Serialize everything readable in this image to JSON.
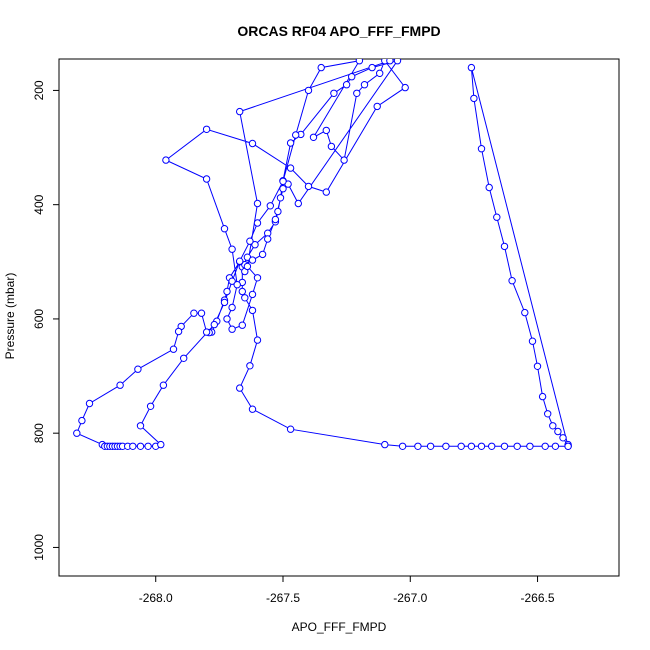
{
  "chart_data": {
    "type": "line",
    "title": "ORCAS RF04 APO_FFF_FMPD",
    "xlabel": "APO_FFF_FMPD",
    "ylabel": "Pressure (mbar)",
    "xlim": [
      -268.38,
      -266.18
    ],
    "ylim": [
      1050,
      145
    ],
    "x_ticks": [
      -268.0,
      -267.5,
      -267.0,
      -266.5
    ],
    "x_tick_labels": [
      "-268.0",
      "-267.5",
      "-267.0",
      "-266.5"
    ],
    "y_ticks": [
      200,
      400,
      600,
      800,
      1000
    ],
    "y_tick_labels": [
      "200",
      "400",
      "600",
      "800",
      "1000"
    ],
    "grid": false,
    "series": [
      {
        "color": "#0000ff",
        "marker": "open-circle",
        "points": [
          [
            -266.38,
            820
          ],
          [
            -266.38,
            823
          ],
          [
            -266.4,
            808
          ],
          [
            -266.42,
            797
          ],
          [
            -266.44,
            787
          ],
          [
            -266.46,
            766
          ],
          [
            -266.48,
            736
          ],
          [
            -266.5,
            683
          ],
          [
            -266.52,
            639
          ],
          [
            -266.55,
            589
          ],
          [
            -266.6,
            533
          ],
          [
            -266.63,
            473
          ],
          [
            -266.66,
            422
          ],
          [
            -266.69,
            370
          ],
          [
            -266.72,
            302
          ],
          [
            -266.75,
            214
          ],
          [
            -266.76,
            160
          ],
          [
            -266.38,
            823
          ],
          [
            -266.43,
            823
          ],
          [
            -266.47,
            823
          ],
          [
            -266.53,
            823
          ],
          [
            -266.58,
            823
          ],
          [
            -266.63,
            823
          ],
          [
            -266.68,
            823
          ],
          [
            -266.72,
            823
          ],
          [
            -266.76,
            823
          ],
          [
            -266.8,
            823
          ],
          [
            -266.86,
            823
          ],
          [
            -266.92,
            823
          ],
          [
            -266.97,
            823
          ],
          [
            -267.03,
            823
          ],
          [
            -267.1,
            820
          ],
          [
            -267.47,
            793
          ],
          [
            -267.62,
            758
          ],
          [
            -267.67,
            721
          ],
          [
            -267.63,
            682
          ],
          [
            -267.6,
            637
          ],
          [
            -267.62,
            585
          ],
          [
            -267.65,
            563
          ],
          [
            -267.66,
            552
          ],
          [
            -267.66,
            536
          ],
          [
            -267.66,
            509
          ],
          [
            -267.64,
            492
          ],
          [
            -267.61,
            470
          ],
          [
            -267.56,
            450
          ],
          [
            -267.53,
            430
          ],
          [
            -267.52,
            412
          ],
          [
            -267.51,
            388
          ],
          [
            -267.5,
            358
          ],
          [
            -267.47,
            292
          ],
          [
            -267.43,
            277
          ],
          [
            -267.3,
            205
          ],
          [
            -267.25,
            190
          ],
          [
            -267.23,
            176
          ],
          [
            -267.15,
            160
          ],
          [
            -267.05,
            148
          ],
          [
            -267.44,
            398
          ],
          [
            -267.48,
            364
          ],
          [
            -267.5,
            372
          ],
          [
            -267.53,
            426
          ],
          [
            -267.56,
            460
          ],
          [
            -267.58,
            487
          ],
          [
            -267.62,
            497
          ],
          [
            -267.65,
            505
          ],
          [
            -267.65,
            517
          ],
          [
            -267.67,
            500
          ],
          [
            -267.71,
            528
          ],
          [
            -267.72,
            552
          ],
          [
            -267.73,
            567
          ],
          [
            -267.76,
            604
          ],
          [
            -267.78,
            623
          ],
          [
            -267.79,
            624
          ],
          [
            -267.8,
            623
          ],
          [
            -267.82,
            590
          ],
          [
            -267.85,
            590
          ],
          [
            -267.9,
            613
          ],
          [
            -267.91,
            622
          ],
          [
            -267.93,
            653
          ],
          [
            -268.07,
            688
          ],
          [
            -268.14,
            716
          ],
          [
            -268.26,
            748
          ],
          [
            -268.29,
            778
          ],
          [
            -268.31,
            800
          ],
          [
            -268.21,
            820
          ],
          [
            -268.2,
            823
          ],
          [
            -268.19,
            823
          ],
          [
            -268.18,
            823
          ],
          [
            -268.17,
            823
          ],
          [
            -268.16,
            823
          ],
          [
            -268.15,
            823
          ],
          [
            -268.14,
            823
          ],
          [
            -268.13,
            823
          ],
          [
            -268.11,
            823
          ],
          [
            -268.09,
            823
          ],
          [
            -268.06,
            823
          ],
          [
            -268.03,
            823
          ],
          [
            -268.0,
            823
          ],
          [
            -267.98,
            820
          ],
          [
            -268.06,
            787
          ],
          [
            -268.02,
            753
          ],
          [
            -267.97,
            716
          ],
          [
            -267.89,
            669
          ],
          [
            -267.77,
            610
          ],
          [
            -267.73,
            571
          ],
          [
            -267.7,
            534
          ],
          [
            -267.67,
            499
          ],
          [
            -267.63,
            464
          ],
          [
            -267.6,
            432
          ],
          [
            -267.55,
            402
          ],
          [
            -267.5,
            359
          ],
          [
            -267.45,
            278
          ],
          [
            -267.4,
            200
          ],
          [
            -267.35,
            160
          ],
          [
            -267.2,
            148
          ],
          [
            -267.38,
            282
          ],
          [
            -267.33,
            270
          ],
          [
            -267.31,
            298
          ],
          [
            -267.26,
            322
          ],
          [
            -267.21,
            205
          ],
          [
            -267.18,
            190
          ],
          [
            -267.12,
            170
          ],
          [
            -267.1,
            148
          ],
          [
            -267.02,
            195
          ],
          [
            -267.13,
            228
          ],
          [
            -267.33,
            378
          ],
          [
            -267.4,
            368
          ],
          [
            -267.47,
            336
          ],
          [
            -267.62,
            293
          ],
          [
            -267.8,
            268
          ],
          [
            -267.96,
            322
          ],
          [
            -267.8,
            355
          ],
          [
            -267.73,
            442
          ],
          [
            -267.7,
            478
          ],
          [
            -267.68,
            540
          ],
          [
            -267.7,
            580
          ],
          [
            -267.72,
            600
          ],
          [
            -267.7,
            618
          ],
          [
            -267.66,
            611
          ],
          [
            -267.62,
            557
          ],
          [
            -267.6,
            528
          ],
          [
            -267.64,
            508
          ],
          [
            -267.6,
            398
          ],
          [
            -267.67,
            237
          ],
          [
            -267.08,
            148
          ]
        ]
      }
    ]
  }
}
